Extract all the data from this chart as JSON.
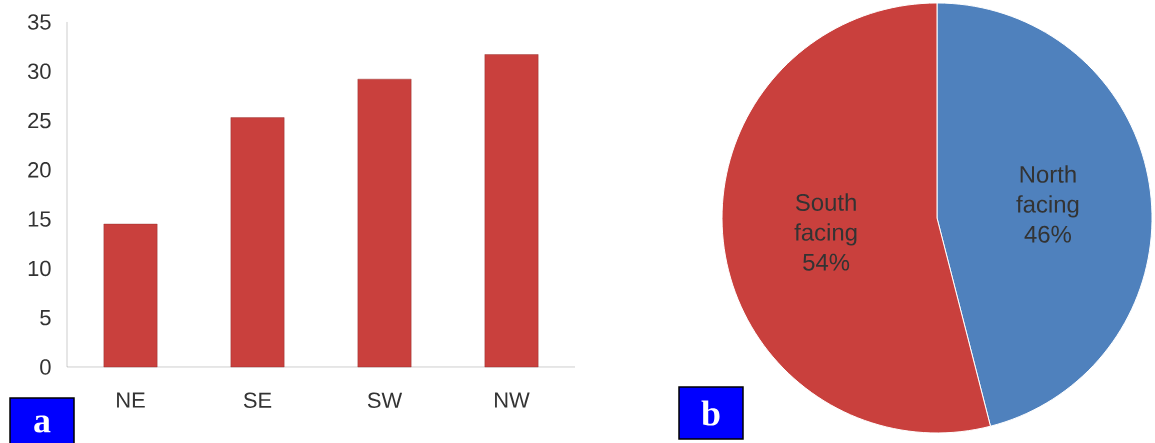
{
  "chart_data": [
    {
      "type": "bar",
      "categories": [
        "NE",
        "SE",
        "SW",
        "NW"
      ],
      "values": [
        14.5,
        25.3,
        29.2,
        31.7
      ],
      "color": "#c9403d",
      "ylim": [
        0,
        35
      ],
      "yticks": [
        0,
        5,
        10,
        15,
        20,
        25,
        30,
        35
      ],
      "annotations": [
        "a"
      ]
    },
    {
      "type": "pie",
      "categories": [
        "North facing",
        "South facing"
      ],
      "values": [
        46,
        54
      ],
      "colors": [
        "#4f81bd",
        "#c9403d"
      ],
      "value_labels": [
        "46%",
        "54%"
      ],
      "annotations": [
        "b"
      ]
    }
  ]
}
